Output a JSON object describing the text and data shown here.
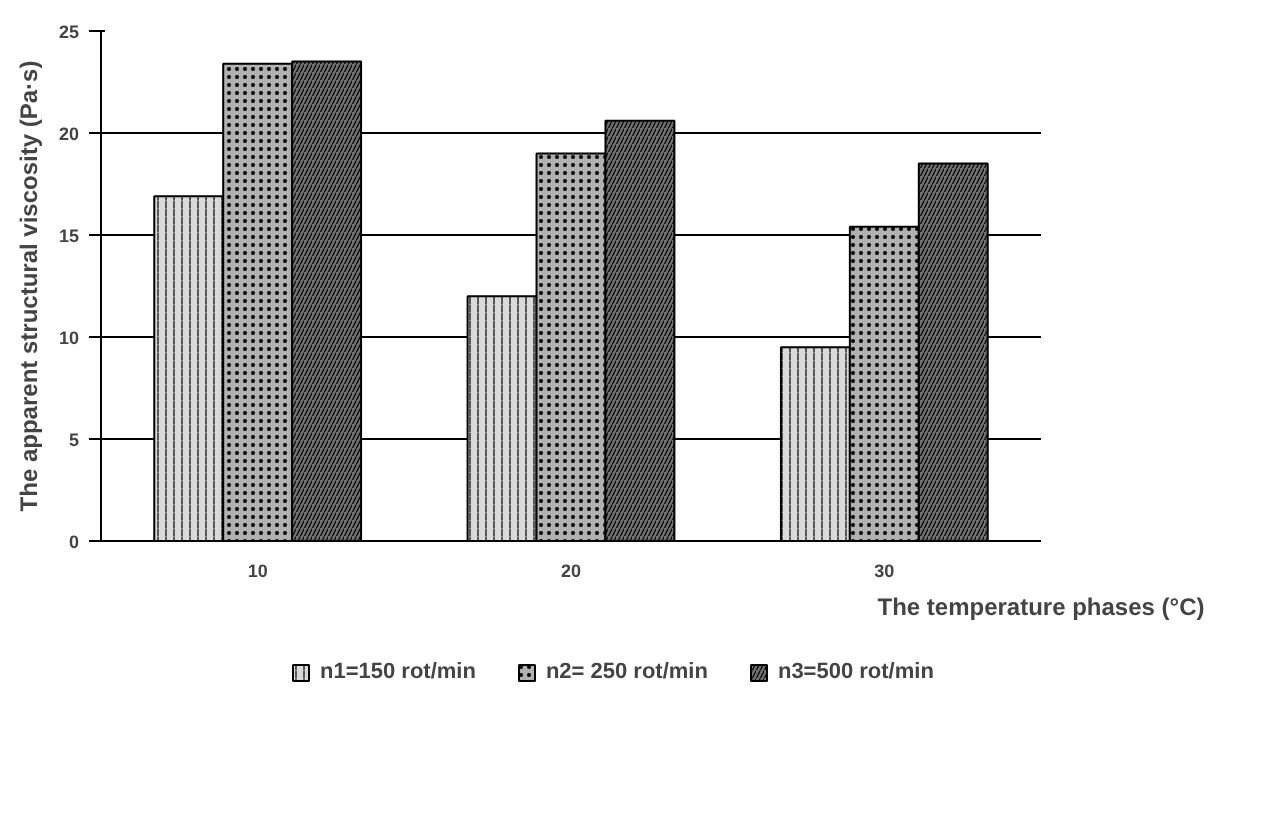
{
  "chart_data": {
    "type": "bar",
    "xlabel": "The temperature phases (°C)",
    "ylabel": "The apparent structural viscosity (Pa·s)",
    "categories": [
      "10",
      "20",
      "30"
    ],
    "series": [
      {
        "name": "n1=150 rot/min",
        "color": "#d9d9d9",
        "values": [
          16.9,
          12.0,
          9.5
        ]
      },
      {
        "name": "n2= 250 rot/min",
        "color": "#b0b0b0",
        "values": [
          23.4,
          19.0,
          15.4
        ]
      },
      {
        "name": "n3=500 rot/min",
        "color": "#707070",
        "values": [
          23.5,
          20.6,
          18.5
        ]
      }
    ],
    "ylim": [
      0,
      25
    ],
    "yticks": [
      0,
      5,
      10,
      15,
      20,
      25
    ],
    "grid": "y",
    "legend": "bottom"
  }
}
